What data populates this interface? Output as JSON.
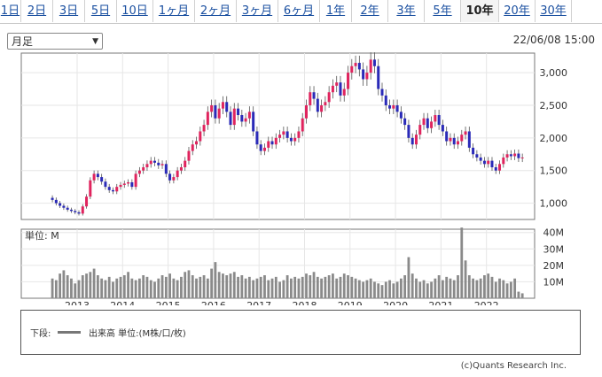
{
  "tabs": [
    {
      "label": "1日",
      "active": false
    },
    {
      "label": "2日",
      "active": false
    },
    {
      "label": "3日",
      "active": false
    },
    {
      "label": "5日",
      "active": false
    },
    {
      "label": "10日",
      "active": false
    },
    {
      "label": "1ヶ月",
      "active": false
    },
    {
      "label": "2ヶ月",
      "active": false
    },
    {
      "label": "3ヶ月",
      "active": false
    },
    {
      "label": "6ヶ月",
      "active": false
    },
    {
      "label": "1年",
      "active": false
    },
    {
      "label": "2年",
      "active": false
    },
    {
      "label": "3年",
      "active": false
    },
    {
      "label": "5年",
      "active": false
    },
    {
      "label": "10年",
      "active": true
    },
    {
      "label": "20年",
      "active": false
    },
    {
      "label": "30年",
      "active": false
    }
  ],
  "period_select": {
    "value": "月足"
  },
  "timestamp": "22/06/08 15:00",
  "colors": {
    "up": "#e0245e",
    "down": "#2a2ab8",
    "volume": "#8a8a8a",
    "grid": "#e6e6e6"
  },
  "chart_data": {
    "type": "candlestick",
    "x_ticks": [
      "2013",
      "2014",
      "2015",
      "2016",
      "2017",
      "2018",
      "2019",
      "2020",
      "2021",
      "2022"
    ],
    "price_ticks": [
      "1,000",
      "1,500",
      "2,000",
      "2,500",
      "3,000"
    ],
    "price_range": [
      750,
      3300
    ],
    "volume_unit_label": "単位: M",
    "volume_ticks": [
      "10M",
      "20M",
      "30M",
      "40M"
    ],
    "volume_range": [
      0,
      42
    ],
    "start": {
      "year": 2012,
      "month": 6
    },
    "closes": [
      1050,
      1000,
      960,
      930,
      900,
      880,
      860,
      840,
      950,
      1100,
      1350,
      1450,
      1400,
      1330,
      1250,
      1200,
      1180,
      1250,
      1280,
      1300,
      1320,
      1250,
      1450,
      1500,
      1550,
      1600,
      1650,
      1620,
      1580,
      1600,
      1450,
      1350,
      1400,
      1500,
      1550,
      1650,
      1800,
      1900,
      1950,
      2100,
      2200,
      2400,
      2500,
      2300,
      2450,
      2550,
      2400,
      2200,
      2450,
      2350,
      2250,
      2300,
      2400,
      2100,
      1900,
      1800,
      1850,
      1950,
      1900,
      2000,
      2050,
      2100,
      2000,
      1950,
      2000,
      2100,
      2300,
      2500,
      2700,
      2600,
      2400,
      2500,
      2550,
      2700,
      2800,
      2850,
      2650,
      2750,
      3000,
      3100,
      3150,
      3050,
      2900,
      3000,
      3200,
      3100,
      2750,
      2650,
      2500,
      2450,
      2500,
      2400,
      2300,
      2200,
      2000,
      1900,
      2050,
      2200,
      2300,
      2150,
      2250,
      2350,
      2200,
      2100,
      1950,
      2000,
      1900,
      1950,
      2050,
      2100,
      1850,
      1750,
      1700,
      1650,
      1600,
      1650,
      1550,
      1500,
      1600,
      1700,
      1750,
      1720,
      1760,
      1690,
      1700
    ],
    "volume": [
      12,
      11,
      15,
      17,
      14,
      12,
      9,
      11,
      14,
      15,
      16,
      18,
      14,
      12,
      11,
      13,
      10,
      12,
      13,
      14,
      16,
      12,
      11,
      12,
      14,
      13,
      11,
      10,
      12,
      14,
      13,
      15,
      12,
      11,
      13,
      16,
      17,
      14,
      12,
      13,
      14,
      12,
      18,
      22,
      16,
      15,
      14,
      15,
      16,
      13,
      14,
      12,
      13,
      11,
      12,
      13,
      14,
      11,
      12,
      13,
      10,
      11,
      14,
      12,
      13,
      12,
      13,
      15,
      14,
      16,
      13,
      12,
      13,
      14,
      15,
      12,
      13,
      15,
      14,
      13,
      12,
      11,
      10,
      11,
      12,
      10,
      9,
      8,
      10,
      11,
      9,
      10,
      12,
      14,
      25,
      15,
      12,
      10,
      11,
      9,
      10,
      12,
      14,
      11,
      13,
      12,
      11,
      14,
      43,
      23,
      14,
      12,
      11,
      12,
      14,
      15,
      13,
      10,
      12,
      11,
      9,
      10,
      12,
      4,
      3
    ]
  },
  "legend": {
    "label": "下段:",
    "series": "出来高 単位:(M株/口/枚)"
  },
  "copyright": "(c)Quants Research Inc."
}
